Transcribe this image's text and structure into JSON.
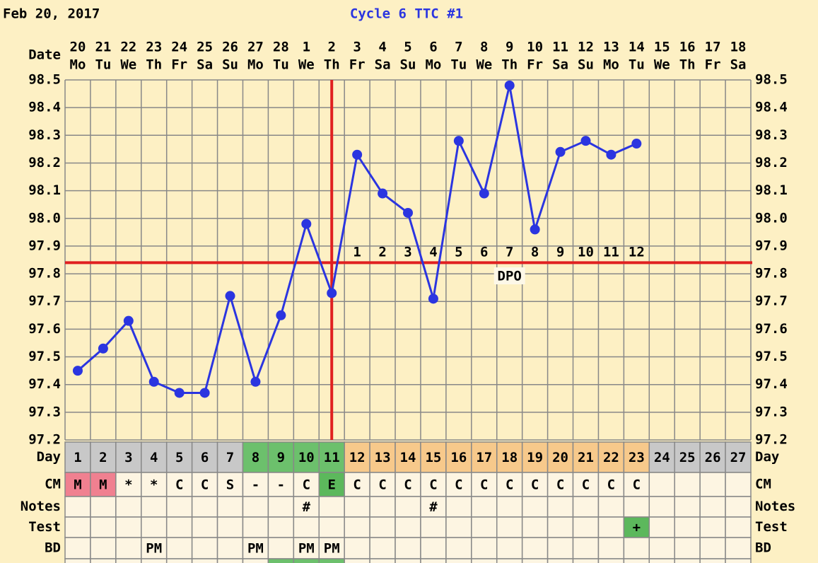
{
  "chart_data": {
    "type": "line",
    "date_label": "Feb 20, 2017",
    "title": "Cycle 6 TTC #1",
    "row_labels": {
      "date": "Date",
      "day": "Day",
      "cm": "CM",
      "notes": "Notes",
      "test": "Test",
      "bd": "BD"
    },
    "dates": [
      20,
      21,
      22,
      23,
      24,
      25,
      26,
      27,
      28,
      1,
      2,
      3,
      4,
      5,
      6,
      7,
      8,
      9,
      10,
      11,
      12,
      13,
      14,
      15,
      16,
      17,
      18
    ],
    "weekdays": [
      "Mo",
      "Tu",
      "We",
      "Th",
      "Fr",
      "Sa",
      "Su",
      "Mo",
      "Tu",
      "We",
      "Th",
      "Fr",
      "Sa",
      "Su",
      "Mo",
      "Tu",
      "We",
      "Th",
      "Fr",
      "Sa",
      "Su",
      "Mo",
      "Tu",
      "We",
      "Th",
      "Fr",
      "Sa"
    ],
    "categories": [
      1,
      2,
      3,
      4,
      5,
      6,
      7,
      8,
      9,
      10,
      11,
      12,
      13,
      14,
      15,
      16,
      17,
      18,
      19,
      20,
      21,
      22,
      23,
      24,
      25,
      26,
      27
    ],
    "day_colors": [
      "#c8c8c8",
      "#c8c8c8",
      "#c8c8c8",
      "#c8c8c8",
      "#c8c8c8",
      "#c8c8c8",
      "#c8c8c8",
      "#6cc06c",
      "#6cc06c",
      "#6cc06c",
      "#6cc06c",
      "#f7c98b",
      "#f7c98b",
      "#f7c98b",
      "#f7c98b",
      "#f7c98b",
      "#f7c98b",
      "#f7c98b",
      "#f7c98b",
      "#f7c98b",
      "#f7c98b",
      "#f7c98b",
      "#f7c98b",
      "#c8c8c8",
      "#c8c8c8",
      "#c8c8c8",
      "#c8c8c8"
    ],
    "series": [
      {
        "color": "#2b35e0",
        "values": [
          97.45,
          97.53,
          97.63,
          97.41,
          97.37,
          97.37,
          97.72,
          97.41,
          97.65,
          97.98,
          97.73,
          98.23,
          98.09,
          98.02,
          97.71,
          98.28,
          98.09,
          98.48,
          97.96,
          98.24,
          98.28,
          98.23,
          98.27,
          null,
          null,
          null,
          null
        ]
      }
    ],
    "coverline": 97.84,
    "coverline_color": "#e02020",
    "ovulation_day": 11,
    "dpo": {
      "label": "DPO",
      "values": [
        1,
        2,
        3,
        4,
        5,
        6,
        7,
        8,
        9,
        10,
        11,
        12
      ]
    },
    "ylim": [
      97.2,
      98.5
    ],
    "yticks": [
      97.2,
      97.3,
      97.4,
      97.5,
      97.6,
      97.7,
      97.8,
      97.9,
      {
        "value": 98,
        "label": "98.0"
      },
      98.1,
      98.2,
      98.3,
      98.4,
      98.5
    ],
    "grid": true,
    "cm": [
      "M",
      "M",
      "*",
      "*",
      "C",
      "C",
      "S",
      "-",
      "-",
      "C",
      "E",
      "C",
      "C",
      "C",
      "C",
      "C",
      "C",
      "C",
      "C",
      "C",
      "C",
      "C",
      "C",
      null,
      null,
      null,
      null
    ],
    "notes": [
      null,
      null,
      null,
      null,
      null,
      null,
      null,
      null,
      null,
      "#",
      null,
      null,
      null,
      null,
      "#",
      null,
      null,
      null,
      null,
      null,
      null,
      null,
      null,
      null,
      null,
      null,
      null
    ],
    "test": [
      null,
      null,
      null,
      null,
      null,
      null,
      null,
      null,
      null,
      null,
      null,
      null,
      null,
      null,
      null,
      null,
      null,
      null,
      null,
      null,
      null,
      null,
      "+",
      null,
      null,
      null,
      null
    ],
    "bd": [
      null,
      null,
      null,
      "PM",
      null,
      null,
      null,
      "PM",
      null,
      "PM",
      "PM",
      null,
      null,
      null,
      null,
      null,
      null,
      null,
      null,
      null,
      null,
      null,
      null,
      null,
      null,
      null,
      null
    ],
    "highlight_colors": {
      "M": "#f08090",
      "E": "#5cb85c",
      "+": "#5cb85c"
    }
  }
}
